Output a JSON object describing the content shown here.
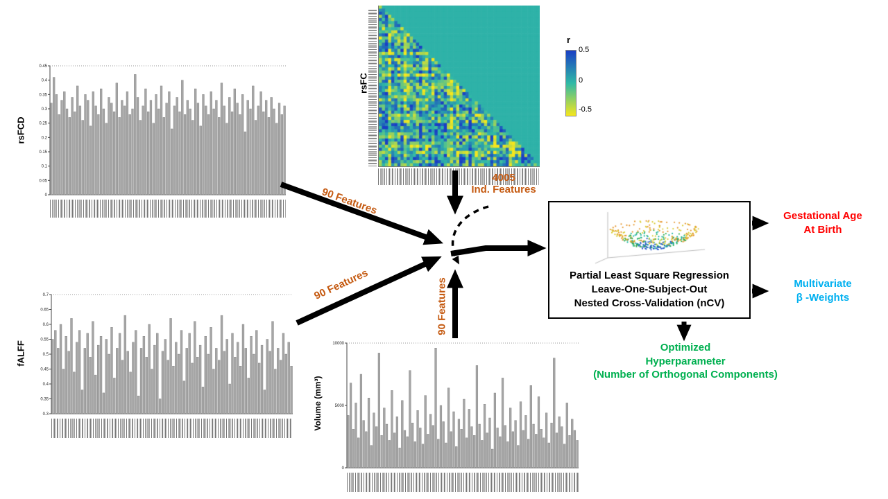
{
  "diagram": {
    "feature_labels": {
      "rsfcd": "90 Features",
      "falff": "90 Features",
      "volume": "90 Features",
      "rsfc_line1": "4005",
      "rsfc_line2": "Ind. Features"
    },
    "pls_box": {
      "line1": "Partial Least Square Regression",
      "line2": "Leave-One-Subject-Out",
      "line3": "Nested Cross-Validation (nCV)"
    },
    "outputs": {
      "gestational": {
        "line1": "Gestational Age",
        "line2": "At Birth",
        "color": "#FF0000"
      },
      "weights": {
        "line1": "Multivariate",
        "line2": "β -Weights",
        "color": "#00B0F0"
      },
      "hyper": {
        "line1": "Optimized",
        "line2": "Hyperparameter",
        "line3": "(Number of Orthogonal Components)",
        "color": "#00B050"
      }
    },
    "colors": {
      "feature_label": "#C55A11",
      "bar_fill": "#A6A6A6",
      "arrow": "#000000"
    }
  },
  "chart_data": [
    {
      "id": "rsfcd",
      "type": "bar",
      "ylabel": "rsFCD",
      "ylim": [
        0,
        0.45
      ],
      "yticks": [
        "0",
        "0.05",
        "0.1",
        "0.15",
        "0.2",
        "0.25",
        "0.3",
        "0.35",
        "0.4",
        "0.45"
      ],
      "values": [
        0.32,
        0.41,
        0.35,
        0.28,
        0.33,
        0.36,
        0.3,
        0.27,
        0.34,
        0.29,
        0.38,
        0.31,
        0.26,
        0.35,
        0.33,
        0.24,
        0.36,
        0.31,
        0.28,
        0.37,
        0.3,
        0.25,
        0.34,
        0.32,
        0.29,
        0.39,
        0.27,
        0.33,
        0.31,
        0.36,
        0.28,
        0.3,
        0.42,
        0.34,
        0.26,
        0.31,
        0.37,
        0.29,
        0.33,
        0.25,
        0.35,
        0.3,
        0.38,
        0.27,
        0.32,
        0.36,
        0.23,
        0.31,
        0.34,
        0.29,
        0.4,
        0.28,
        0.33,
        0.3,
        0.26,
        0.37,
        0.32,
        0.24,
        0.35,
        0.31,
        0.28,
        0.36,
        0.3,
        0.33,
        0.27,
        0.39,
        0.31,
        0.25,
        0.34,
        0.29,
        0.37,
        0.32,
        0.28,
        0.35,
        0.22,
        0.33,
        0.3,
        0.38,
        0.26,
        0.31,
        0.36,
        0.29,
        0.33,
        0.27,
        0.34,
        0.3,
        0.25,
        0.32,
        0.28,
        0.31
      ]
    },
    {
      "id": "falff",
      "type": "bar",
      "ylabel": "fALFF",
      "ylim": [
        0.3,
        0.7
      ],
      "yticks": [
        "0.3",
        "0.35",
        "0.4",
        "0.45",
        "0.5",
        "0.55",
        "0.6",
        "0.65",
        "0.7"
      ],
      "values": [
        0.55,
        0.58,
        0.52,
        0.6,
        0.45,
        0.56,
        0.51,
        0.62,
        0.44,
        0.54,
        0.58,
        0.38,
        0.52,
        0.57,
        0.49,
        0.61,
        0.43,
        0.53,
        0.56,
        0.37,
        0.55,
        0.5,
        0.59,
        0.42,
        0.52,
        0.57,
        0.48,
        0.63,
        0.51,
        0.44,
        0.54,
        0.58,
        0.36,
        0.52,
        0.56,
        0.49,
        0.6,
        0.45,
        0.53,
        0.57,
        0.35,
        0.51,
        0.55,
        0.48,
        0.62,
        0.46,
        0.54,
        0.5,
        0.58,
        0.41,
        0.52,
        0.57,
        0.47,
        0.61,
        0.49,
        0.53,
        0.39,
        0.56,
        0.5,
        0.59,
        0.45,
        0.52,
        0.48,
        0.63,
        0.51,
        0.55,
        0.4,
        0.57,
        0.49,
        0.54,
        0.46,
        0.6,
        0.52,
        0.42,
        0.56,
        0.5,
        0.58,
        0.47,
        0.53,
        0.38,
        0.55,
        0.51,
        0.61,
        0.45,
        0.52,
        0.48,
        0.57,
        0.5,
        0.54,
        0.46
      ]
    },
    {
      "id": "volume",
      "type": "bar",
      "ylabel": "Volume (mm³)",
      "ylim": [
        0,
        10000
      ],
      "yticks": [
        "0",
        "5000",
        "10000"
      ],
      "values": [
        4200,
        6800,
        3100,
        5200,
        2400,
        7500,
        3800,
        2900,
        5600,
        1800,
        4400,
        3300,
        9200,
        2600,
        4800,
        3500,
        2200,
        6200,
        2800,
        4100,
        1600,
        5400,
        3000,
        2500,
        7800,
        3600,
        2100,
        4600,
        3200,
        1900,
        5800,
        2700,
        4300,
        3400,
        9600,
        2300,
        5000,
        3700,
        2000,
        6400,
        2900,
        4500,
        1700,
        3900,
        3100,
        5500,
        2400,
        4700,
        3300,
        2600,
        8200,
        3500,
        2200,
        5100,
        2800,
        4000,
        1500,
        6000,
        3200,
        2500,
        7200,
        3400,
        2100,
        4800,
        2900,
        3800,
        1800,
        5300,
        3000,
        4200,
        2300,
        6600,
        3500,
        2700,
        5700,
        3100,
        2400,
        4400,
        2000,
        3600,
        8800,
        2800,
        4100,
        3300,
        1900,
        5200,
        2600,
        3900,
        3000,
        2200
      ]
    },
    {
      "id": "rsfc",
      "type": "heatmap",
      "ylabel": "rsFC",
      "n": 52,
      "seed": 11,
      "value_range": [
        -0.5,
        0.5
      ],
      "colormap": [
        "#F5E61D",
        "#2FB9A6",
        "#1A3FC4"
      ],
      "colorbar": {
        "title": "r",
        "ticks": [
          "0.5",
          "0",
          "-0.5"
        ]
      }
    },
    {
      "id": "pls3d",
      "type": "scatter3d",
      "seed": 5,
      "n_points": 380,
      "point_colors": [
        "#2B59C8",
        "#17B39E",
        "#2FAE4F",
        "#E59429",
        "#D9CB30"
      ]
    }
  ]
}
